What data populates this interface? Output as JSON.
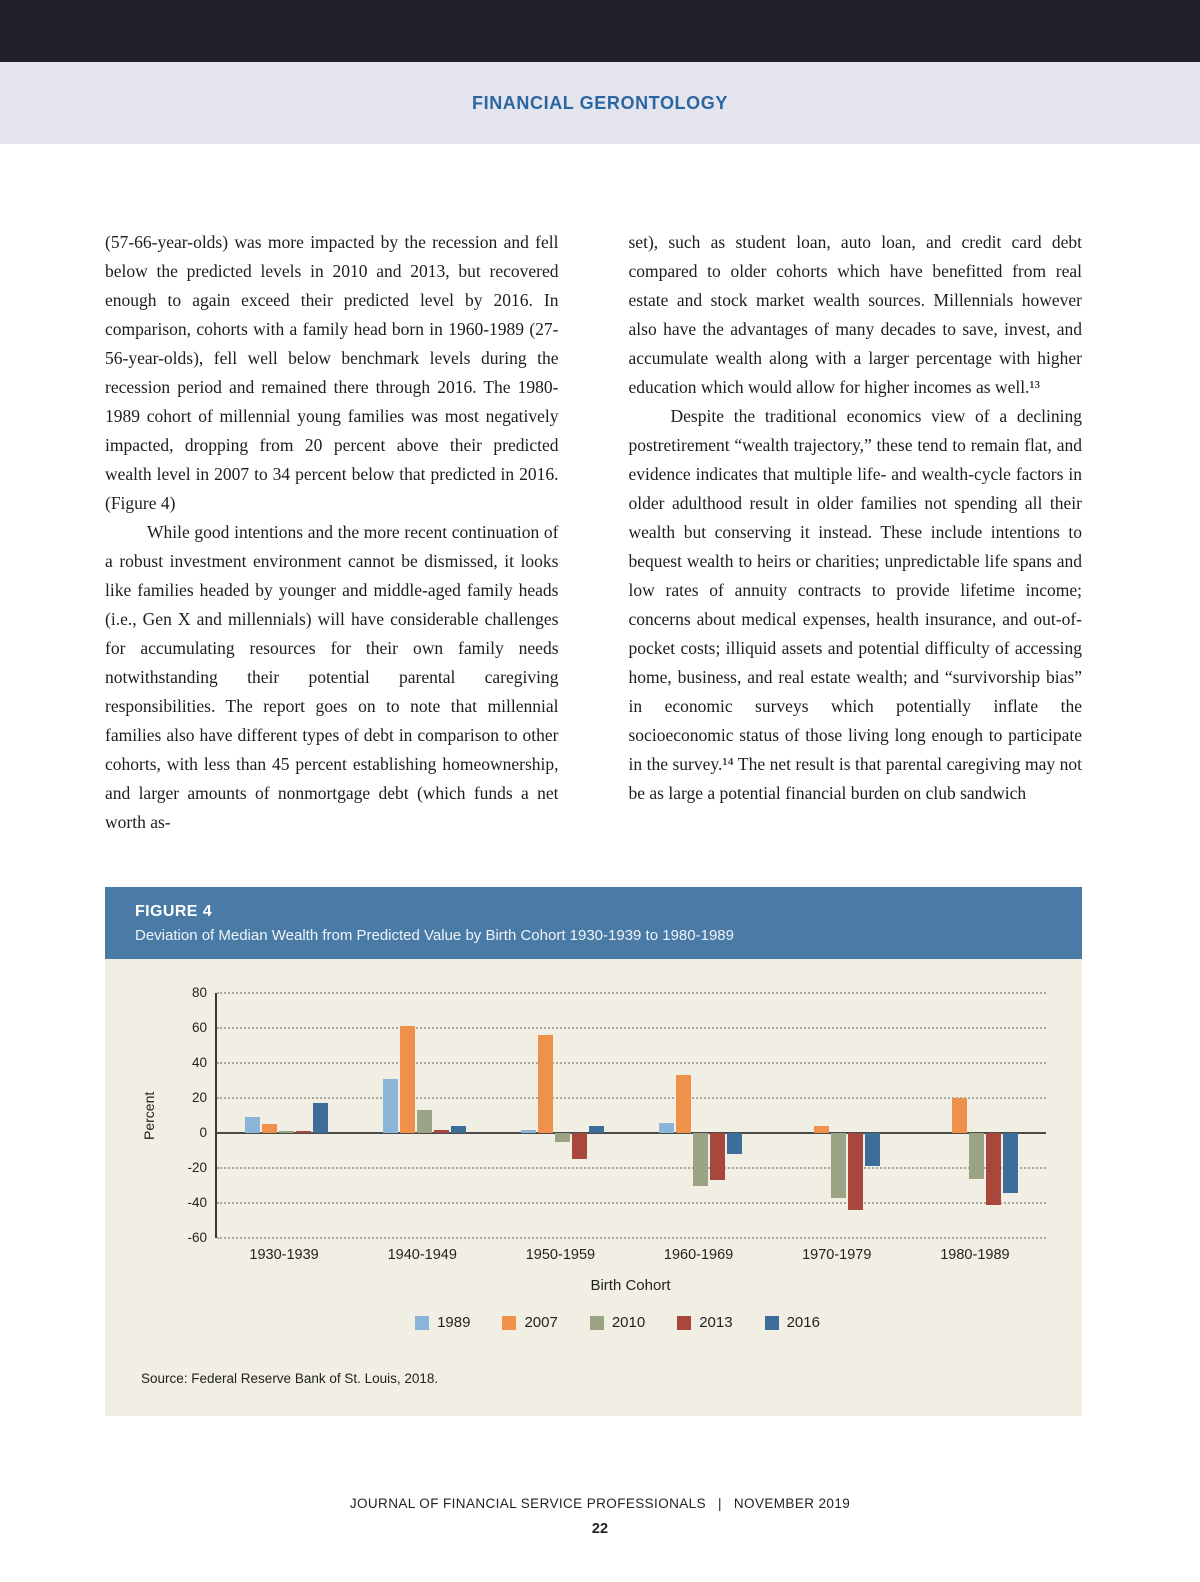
{
  "header": {
    "title": "FINANCIAL GERONTOLOGY"
  },
  "article": {
    "left_column": [
      "(57-66-year-olds) was more impacted by the recession and fell below the predicted levels in 2010 and 2013, but recovered enough to again exceed their predicted level by 2016. In comparison, cohorts with a family head born in 1960-1989 (27-56-year-olds), fell well below benchmark levels during the recession period and remained there through 2016. The 1980-1989 cohort of millennial young families was most negatively impacted, dropping from 20 percent above their predicted wealth level in 2007 to 34 percent below that predicted in 2016. (Figure 4)",
      "While good intentions and the more recent continuation of a robust investment environment cannot be dismissed, it looks like families headed by younger and middle-aged family heads (i.e., Gen X and millennials) will have considerable challenges for accumulating resources for their own family needs notwithstanding their potential parental caregiving responsibilities. The report goes on to note that millennial families also have different types of debt in comparison to other cohorts, with less than 45 percent establishing homeownership, and larger amounts of nonmortgage debt (which funds a net worth as-"
    ],
    "right_column": [
      "set), such as student loan, auto loan, and credit card debt compared to older cohorts which have benefitted from real estate and stock market wealth sources. Millennials however also have the advantages of many decades to save, invest, and accumulate wealth along with a larger percentage with higher education which would allow for higher incomes as well.¹³",
      "Despite the traditional economics view of a declining postretirement “wealth trajectory,” these tend to remain flat, and evidence indicates that multiple life- and wealth-cycle factors in older adulthood result in older families not spending all their wealth but conserving it instead. These include intentions to bequest wealth to heirs or charities; unpredictable life spans and low rates of annuity contracts to provide lifetime income; concerns about medical expenses, health insurance, and out-of-pocket costs; illiquid assets and potential difficulty of accessing home, business, and real estate wealth; and “survivorship bias” in economic surveys which potentially inflate the socioeconomic status of those living long enough to participate in the survey.¹⁴ The net result is that parental caregiving may not be as large a potential financial burden on club sandwich"
    ]
  },
  "figure": {
    "label": "FIGURE 4",
    "title": "Deviation of Median Wealth from Predicted Value by Birth Cohort 1930-1939 to 1980-1989",
    "source": "Source: Federal Reserve Bank of St. Louis, 2018."
  },
  "chart_data": {
    "type": "bar",
    "title": "Deviation of Median Wealth from Predicted Value by Birth Cohort 1930-1939 to 1980-1989",
    "categories": [
      "1930-1939",
      "1940-1949",
      "1950-1959",
      "1960-1969",
      "1970-1979",
      "1980-1989"
    ],
    "series": [
      {
        "name": "1989",
        "color": "#8ab4d8",
        "values": [
          9,
          31,
          2,
          6,
          0,
          0
        ]
      },
      {
        "name": "2007",
        "color": "#f0914b",
        "values": [
          5,
          61,
          56,
          33,
          4,
          20
        ]
      },
      {
        "name": "2010",
        "color": "#9aa383",
        "values": [
          1,
          13,
          -5,
          -30,
          -37,
          -26
        ]
      },
      {
        "name": "2013",
        "color": "#a9473d",
        "values": [
          1,
          2,
          -15,
          -27,
          -44,
          -41
        ]
      },
      {
        "name": "2016",
        "color": "#3d6e99",
        "values": [
          17,
          4,
          4,
          -12,
          -19,
          -34
        ]
      }
    ],
    "xlabel": "Birth Cohort",
    "ylabel": "Percent",
    "ylim": [
      -60,
      80
    ],
    "yticks": [
      80,
      60,
      40,
      20,
      0,
      -20,
      -40,
      -60
    ],
    "grid": "horizontal dotted",
    "legend_position": "bottom"
  },
  "footer": {
    "journal": "JOURNAL OF FINANCIAL SERVICE PROFESSIONALS",
    "separator": "|",
    "issue": "NOVEMBER 2019",
    "page_number": "22"
  },
  "colors": {
    "top_bar": "#21212d",
    "header_band": "#e4e4ee",
    "header_title": "#2b66a3",
    "figure_header": "#4a7ba6",
    "figure_background": "#f1efe3"
  }
}
